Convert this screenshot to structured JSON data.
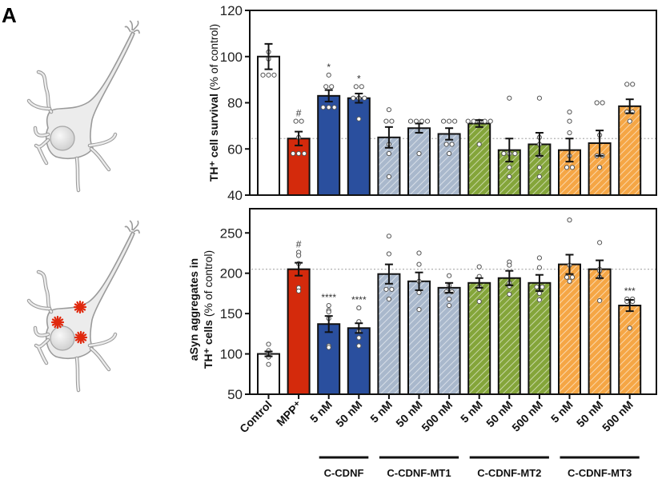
{
  "panel_label": "A",
  "chart_data": [
    {
      "type": "bar",
      "id": "survival",
      "ylabel_bold": "TH⁺ cell survival",
      "ylabel_normal": " (% of control)",
      "ylim": [
        40,
        120
      ],
      "yticks": [
        40,
        60,
        80,
        100,
        120
      ],
      "reference_line": 64.5,
      "categories": [
        "Control",
        "MPP⁺",
        "5 nM",
        "50 nM",
        "5 nM",
        "50 nM",
        "500 nM",
        "5 nM",
        "50 nM",
        "500 nM",
        "5 nM",
        "50 nM",
        "500 nM"
      ],
      "values": [
        100,
        64.5,
        83,
        82,
        65,
        69,
        66.5,
        71,
        59.5,
        62,
        59.5,
        62.5,
        78.5
      ],
      "sem": [
        5.5,
        3,
        2.5,
        2,
        4.5,
        2,
        2.5,
        1.5,
        5,
        5,
        5,
        5.5,
        3
      ],
      "points": [
        [
          102,
          99,
          92,
          92,
          92
        ],
        [
          72,
          72,
          65,
          58,
          58,
          58
        ],
        [
          92,
          87,
          87,
          78,
          78,
          78
        ],
        [
          87,
          87,
          82,
          82,
          82,
          73
        ],
        [
          77,
          72,
          72,
          62,
          58,
          48
        ],
        [
          72,
          72,
          72,
          72,
          58
        ],
        [
          72,
          72,
          72,
          62,
          62,
          58
        ],
        [
          72,
          72,
          72,
          72,
          72,
          62
        ],
        [
          82,
          58,
          58,
          58,
          52,
          48
        ],
        [
          82,
          65,
          62,
          57,
          52,
          48
        ],
        [
          76,
          72,
          67,
          57,
          52,
          52
        ],
        [
          80,
          80,
          66,
          57,
          57,
          52
        ],
        [
          88,
          88,
          76,
          76,
          72
        ]
      ],
      "significance": [
        "",
        "#",
        "*",
        "*",
        "",
        "",
        "",
        "",
        "",
        "",
        "",
        "",
        ""
      ]
    },
    {
      "type": "bar",
      "id": "aggregates",
      "ylabel_line1": "aSyn aggregates in",
      "ylabel_line2_bold": "TH⁺ cells",
      "ylabel_line2_normal": " (% of control)",
      "ylim": [
        50,
        280
      ],
      "yticks": [
        50,
        100,
        150,
        200,
        250
      ],
      "reference_line": 205,
      "categories": [
        "Control",
        "MPP⁺",
        "5 nM",
        "50 nM",
        "5 nM",
        "50 nM",
        "500 nM",
        "5 nM",
        "50 nM",
        "500 nM",
        "5 nM",
        "50 nM",
        "500 nM"
      ],
      "values": [
        100,
        205,
        137,
        132,
        199,
        190,
        182,
        188,
        194,
        188,
        211,
        205,
        160
      ],
      "sem": [
        3,
        8,
        10,
        6,
        12,
        11,
        6,
        6,
        9,
        10,
        12,
        11,
        7
      ],
      "points": [
        [
          112,
          104,
          101,
          99,
          97,
          96,
          87
        ],
        [
          226,
          222,
          212,
          182,
          178
        ],
        [
          160,
          154,
          152,
          144,
          110,
          108
        ],
        [
          157,
          140,
          128,
          120,
          110
        ],
        [
          246,
          224,
          180,
          180,
          168
        ],
        [
          225,
          211,
          190,
          176,
          155
        ],
        [
          197,
          185,
          177,
          177,
          168,
          160
        ],
        [
          208,
          196,
          183,
          180,
          165
        ],
        [
          214,
          210,
          188,
          184,
          174
        ],
        [
          219,
          207,
          183,
          183,
          175,
          167
        ],
        [
          266,
          210,
          195,
          195,
          190
        ],
        [
          238,
          205,
          203,
          195,
          166
        ],
        [
          168,
          168,
          165,
          165,
          132
        ]
      ],
      "significance": [
        "",
        "#",
        "****",
        "****",
        "",
        "",
        "",
        "",
        "",
        "",
        "",
        "",
        "***"
      ]
    }
  ],
  "groups": [
    {
      "label": "C-CDNF",
      "from": 2,
      "to": 3
    },
    {
      "label": "C-CDNF-MT1",
      "from": 4,
      "to": 6
    },
    {
      "label": "C-CDNF-MT2",
      "from": 7,
      "to": 9
    },
    {
      "label": "C-CDNF-MT3",
      "from": 10,
      "to": 12
    }
  ],
  "bar_styles": [
    {
      "fill": "#ffffff",
      "hatch": false
    },
    {
      "fill": "#d42a0c",
      "hatch": false
    },
    {
      "fill": "#2a4f9e",
      "hatch": false
    },
    {
      "fill": "#2a4f9e",
      "hatch": false
    },
    {
      "fill": "#a9b8cc",
      "hatch": true
    },
    {
      "fill": "#a9b8cc",
      "hatch": true
    },
    {
      "fill": "#a9b8cc",
      "hatch": true
    },
    {
      "fill": "#84a53a",
      "hatch": true
    },
    {
      "fill": "#84a53a",
      "hatch": true
    },
    {
      "fill": "#84a53a",
      "hatch": true
    },
    {
      "fill": "#f5a645",
      "hatch": true
    },
    {
      "fill": "#f5a645",
      "hatch": true
    },
    {
      "fill": "#f5a645",
      "hatch": true
    }
  ],
  "illustrations": [
    {
      "name": "neuron-healthy",
      "aggregates": false
    },
    {
      "name": "neuron-with-aggregates",
      "aggregates": true,
      "aggregate_color": "#e0290e"
    }
  ]
}
